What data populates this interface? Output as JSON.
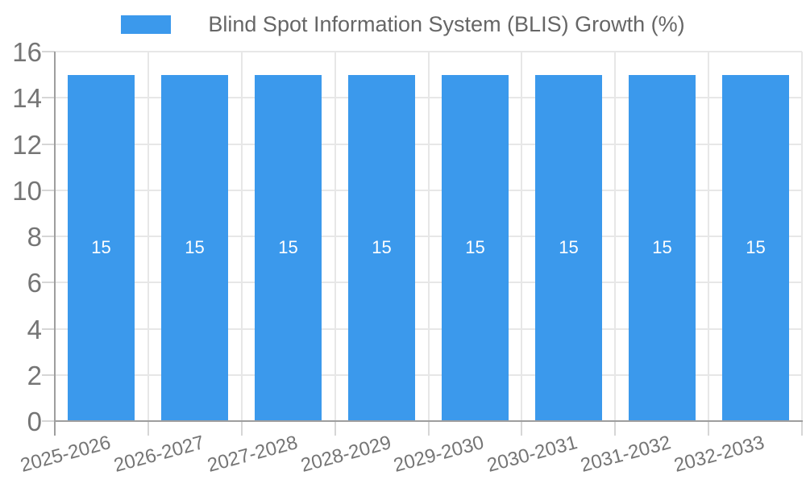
{
  "chart_data": {
    "type": "bar",
    "title": "Blind Spot Information System (BLIS) Growth (%)",
    "categories": [
      "2025-2026",
      "2026-2027",
      "2027-2028",
      "2028-2029",
      "2029-2030",
      "2030-2031",
      "2031-2032",
      "2032-2033"
    ],
    "values": [
      15,
      15,
      15,
      15,
      15,
      15,
      15,
      15
    ],
    "bar_labels": [
      "15",
      "15",
      "15",
      "15",
      "15",
      "15",
      "15",
      "15"
    ],
    "xlabel": "",
    "ylabel": "",
    "ylim": [
      0,
      16
    ],
    "yticks": [
      0,
      2,
      4,
      6,
      8,
      10,
      12,
      14,
      16
    ],
    "grid": "both",
    "legend_position": "top-center",
    "colors": {
      "bar": "#3B99EC",
      "bar_label_text": "#ffffff",
      "gridline": "#e7e7e7",
      "tick_mark": "#d6d6d6",
      "axis_line": "#9e9e9e",
      "tick_text": "#757575",
      "legend_text": "#666666",
      "background": "#ffffff"
    }
  }
}
